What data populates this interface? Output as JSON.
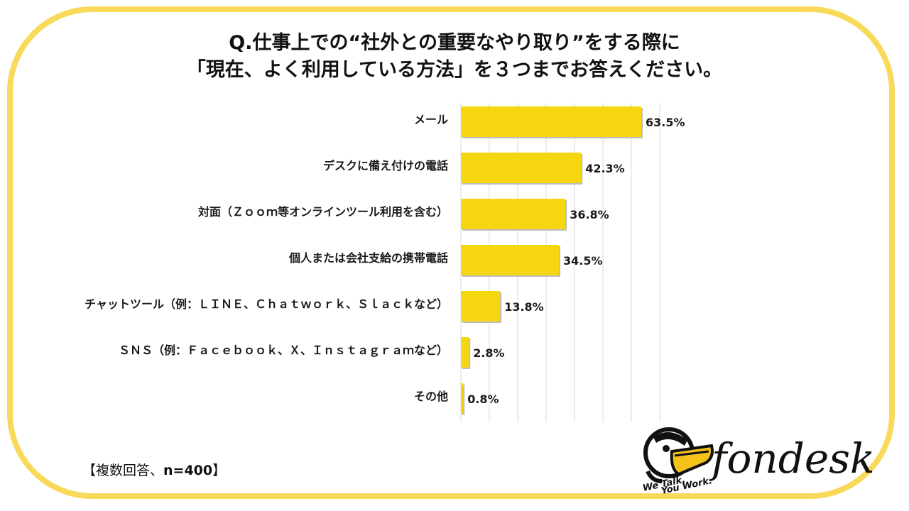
{
  "title": {
    "line1": "Q.仕事上での“社外との重要なやり取り”をする際に",
    "line2": "「現在、よく利用している方法」を３つまでお答えください。"
  },
  "footnote": {
    "prefix": "【複数回答、",
    "n": "n=400",
    "suffix": "】"
  },
  "logo": {
    "brand": "fondesk",
    "tagline1": "We Talk,",
    "tagline2": "You Work."
  },
  "colors": {
    "bar": "#f5d60f",
    "frame": "#f9d95a",
    "grid": "#d9d9d9"
  },
  "chart_data": {
    "type": "bar",
    "orientation": "horizontal",
    "categories": [
      "メール",
      "デスクに備え付けの電話",
      "対面（Ｚｏｏｍ等オンラインツール利用を含む）",
      "個人または会社支給の携帯電話",
      "チャットツール（例：ＬＩＮＥ、Ｃｈａｔｗｏｒｋ、Ｓｌａｃｋなど）",
      "ＳＮＳ（例：Ｆａｃｅｂｏｏｋ、Ｘ、Ｉｎｓｔａｇｒａｍなど）",
      "その他"
    ],
    "values": [
      63.5,
      42.3,
      36.8,
      34.5,
      13.8,
      2.8,
      0.8
    ],
    "value_labels": [
      "63.5%",
      "42.3%",
      "36.8%",
      "34.5%",
      "13.8%",
      "2.8%",
      "0.8%"
    ],
    "xlim": [
      0,
      70
    ],
    "grid": true
  }
}
